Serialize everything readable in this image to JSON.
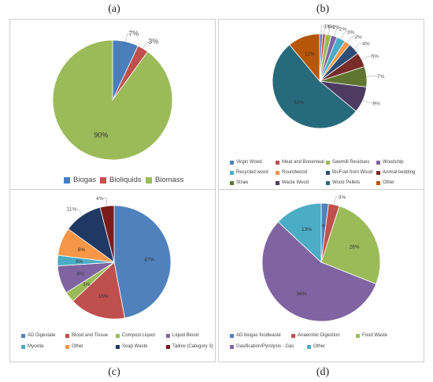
{
  "captions": [
    "(a)",
    "(b)",
    "(c)",
    "(d)"
  ],
  "chart_data": [
    {
      "type": "pie",
      "title": "",
      "categories": [
        "Biogas",
        "Bioliquids",
        "Biomass"
      ],
      "values": [
        7,
        3,
        90
      ],
      "labels": [
        "7%",
        "3%",
        "90%"
      ],
      "colors": [
        "#4a7ebb",
        "#c0504d",
        "#9bbb59"
      ],
      "legend_position": "bottom"
    },
    {
      "type": "pie",
      "title": "",
      "categories": [
        "Virgin Wood",
        "Meat and Bonemeal",
        "Sawmill Residues",
        "Woodchip",
        "Recycled wood",
        "Roundwood",
        "BioFuel from Wood",
        "Animal bedding",
        "Straw",
        "Waste Wood",
        "Wood Pellets",
        "Other"
      ],
      "values": [
        1,
        1,
        2,
        2,
        3,
        2,
        4,
        5,
        7,
        9,
        53,
        11
      ],
      "labels": [
        "1%",
        "1%",
        "2%",
        "2%",
        "3%",
        "2%",
        "4%",
        "5%",
        "7%",
        "9%",
        "53%",
        "11%"
      ],
      "colors": [
        "#4f81bd",
        "#c0504d",
        "#9bbb59",
        "#8064a2",
        "#4bacc6",
        "#f79646",
        "#2c4d75",
        "#772c2a",
        "#5f7530",
        "#4d3b62",
        "#276a7c",
        "#b65708"
      ],
      "legend_position": "bottom"
    },
    {
      "type": "pie",
      "title": "",
      "categories": [
        "AD Digestate",
        "Blood and Tissue",
        "Compost Liquor",
        "Liquid Blood",
        "Mycelia",
        "Other",
        "Soap Waste",
        "Tallow (Category 3)"
      ],
      "values": [
        47,
        16,
        3,
        8,
        3,
        8,
        11,
        4
      ],
      "labels": [
        "47%",
        "16%",
        "3%",
        "8%",
        "3%",
        "8%",
        "11%",
        "4%"
      ],
      "colors": [
        "#4f81bd",
        "#c0504d",
        "#9bbb59",
        "#8064a2",
        "#4bacc6",
        "#f79646",
        "#1f3864",
        "#7b1c1c"
      ],
      "legend_position": "bottom"
    },
    {
      "type": "pie",
      "title": "",
      "categories": [
        "AD biogas foodwaste",
        "Anaerobic Digestion",
        "Food Waste",
        "Gasification/Pyrolysis - Gas",
        "Other"
      ],
      "values": [
        2,
        3,
        26,
        56,
        13
      ],
      "labels": [
        "2%",
        "3%",
        "26%",
        "56%",
        "13%"
      ],
      "colors": [
        "#4f81bd",
        "#c0504d",
        "#9bbb59",
        "#8064a2",
        "#4bacc6"
      ],
      "legend_position": "bottom"
    }
  ]
}
